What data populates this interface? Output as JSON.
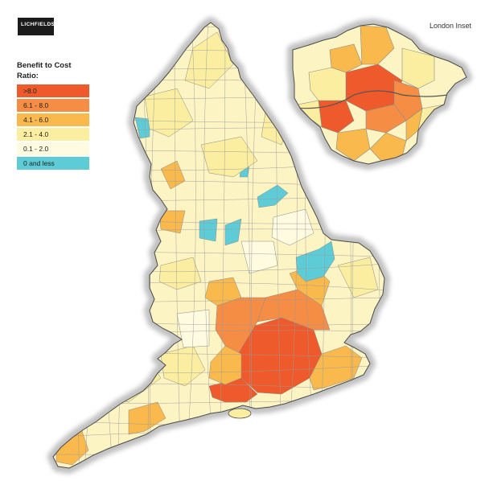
{
  "logo": {
    "text": "LICHFIELDS"
  },
  "legend": {
    "title": "Benefit to Cost Ratio:",
    "items": [
      {
        "label": ">8.0",
        "color": "#ef5a2c"
      },
      {
        "label": "6.1 - 8.0",
        "color": "#f68d45"
      },
      {
        "label": "4.1 - 6.0",
        "color": "#f9b94d"
      },
      {
        "label": "2.1 - 4.0",
        "color": "#fbeea0"
      },
      {
        "label": "0.1 - 2.0",
        "color": "#fffbe0"
      },
      {
        "label": "0 and less",
        "color": "#5dccd7"
      }
    ]
  },
  "inset": {
    "title": "London Inset"
  },
  "colors": {
    "shadow": "#8f8f8f",
    "boundary": "#4a4a4a",
    "base": "#fdf4c4"
  },
  "icons": [
    "logo-mark"
  ]
}
